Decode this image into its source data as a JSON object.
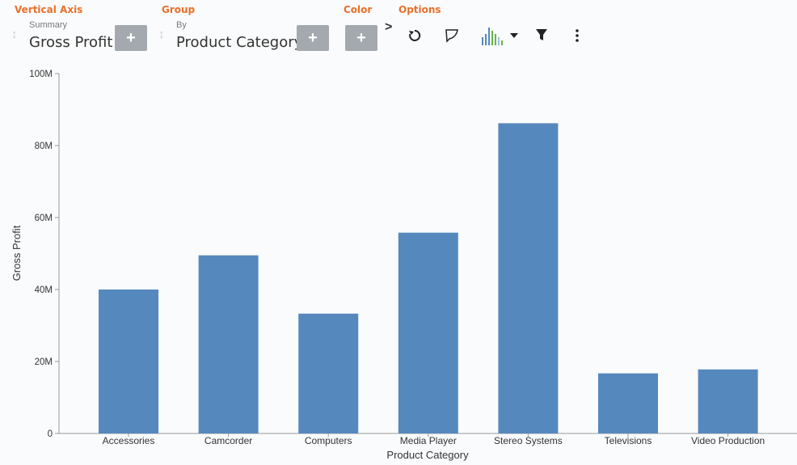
{
  "toolbar": {
    "vertical_axis": {
      "title": "Vertical Axis",
      "summary": "Summary",
      "field": "Gross Profit"
    },
    "group": {
      "title": "Group",
      "by": "By",
      "field": "Product Category"
    },
    "color": {
      "title": "Color"
    },
    "options": {
      "title": "Options"
    },
    "plus_label": "+",
    "more_label": ">",
    "icons": [
      "reset-icon",
      "freeform-icon",
      "chart-type-icon",
      "dropdown-caret-icon",
      "filter-icon",
      "more-options-icon"
    ]
  },
  "colors": {
    "accent": "#e8702a",
    "bar": "#5589bd",
    "button": "#a3a9ae"
  },
  "chart_data": {
    "type": "bar",
    "title": "",
    "xlabel": "Product Category",
    "ylabel": "Gross Profit",
    "categories": [
      "Accessories",
      "Camcorder",
      "Computers",
      "Media Player",
      "Stereo Systems",
      "Televisions",
      "Video Production"
    ],
    "values": [
      40,
      49.5,
      33.3,
      55.8,
      86.2,
      16.7,
      17.8
    ],
    "value_unit": "M",
    "ylim": [
      0,
      100
    ],
    "yticks": [
      0,
      20,
      40,
      60,
      80,
      100
    ],
    "ytick_labels": [
      "0",
      "20M",
      "40M",
      "60M",
      "80M",
      "100M"
    ],
    "grid": false,
    "legend": "none"
  }
}
